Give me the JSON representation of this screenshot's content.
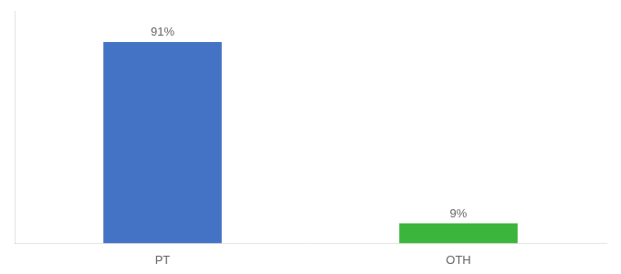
{
  "chart_data": {
    "type": "bar",
    "categories": [
      "PT",
      "OTH"
    ],
    "values": [
      91,
      9
    ],
    "value_labels": [
      "91%",
      "9%"
    ],
    "colors": [
      "#4472c4",
      "#3cb53c"
    ],
    "ylim": [
      0,
      105
    ],
    "yticks": [],
    "grid": false,
    "data_labels": true,
    "tick_labels": "x"
  }
}
